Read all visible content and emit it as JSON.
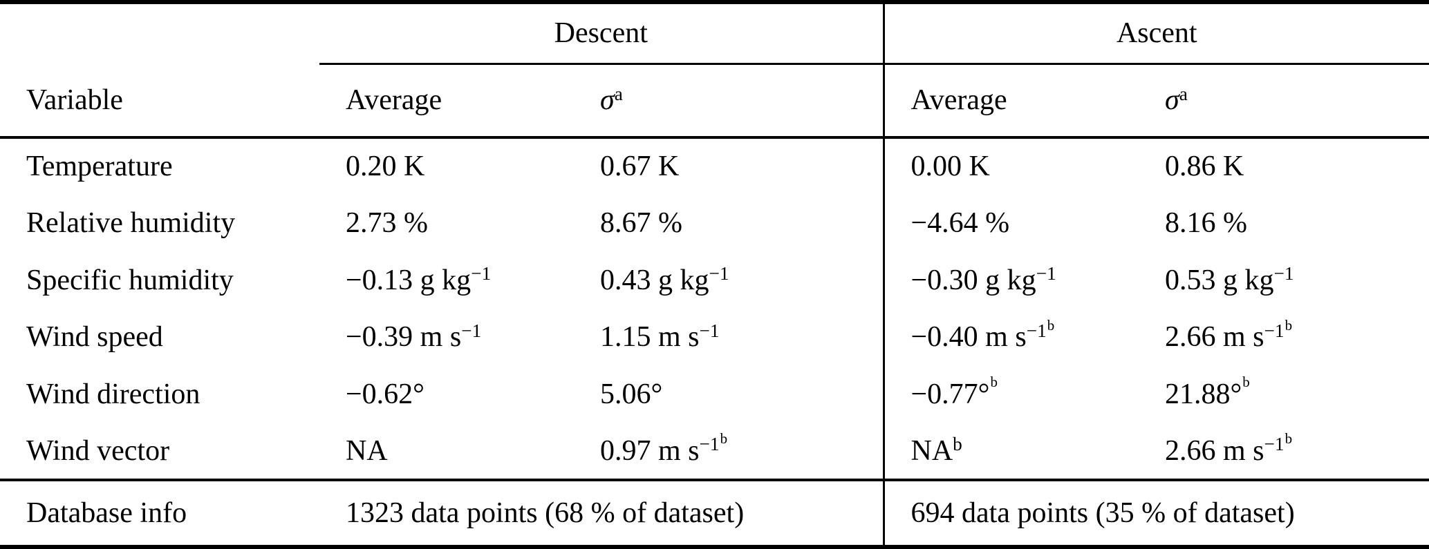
{
  "table": {
    "group_headers": [
      "Descent",
      "Ascent"
    ],
    "columns": [
      "Variable",
      "Average",
      "σ^{a}",
      "Average",
      "σ^{a}"
    ],
    "rows": [
      {
        "variable": "Temperature",
        "descent_avg": "0.20 K",
        "descent_sigma": "0.67 K",
        "ascent_avg": "0.00 K",
        "ascent_sigma": "0.86 K"
      },
      {
        "variable": "Relative humidity",
        "descent_avg": "2.73 %",
        "descent_sigma": "8.67 %",
        "ascent_avg": "−4.64 %",
        "ascent_sigma": "8.16 %"
      },
      {
        "variable": "Specific humidity",
        "descent_avg": "−0.13 g kg^{−1}",
        "descent_sigma": "0.43 g kg^{−1}",
        "ascent_avg": "−0.30 g kg^{−1}",
        "ascent_sigma": "0.53 g kg^{−1}"
      },
      {
        "variable": "Wind speed",
        "descent_avg": "−0.39 m s^{−1}",
        "descent_sigma": "1.15 m s^{−1}",
        "ascent_avg": "−0.40 m s^{−1}^^{b}",
        "ascent_sigma": "2.66 m s^{−1}^^{b}"
      },
      {
        "variable": "Wind direction",
        "descent_avg": "−0.62°",
        "descent_sigma": "5.06°",
        "ascent_avg": "−0.77°^^{b}",
        "ascent_sigma": "21.88°^^{b}"
      },
      {
        "variable": "Wind vector",
        "descent_avg": "NA",
        "descent_sigma": "0.97 m s^{−1}^^{b}",
        "ascent_avg": "NA^{b}",
        "ascent_sigma": "2.66 m s^{−1}^^{b}"
      }
    ],
    "footer": {
      "label": "Database info",
      "descent": "1323 data points (68 % of dataset)",
      "ascent": "694 data points (35 % of dataset)"
    }
  }
}
